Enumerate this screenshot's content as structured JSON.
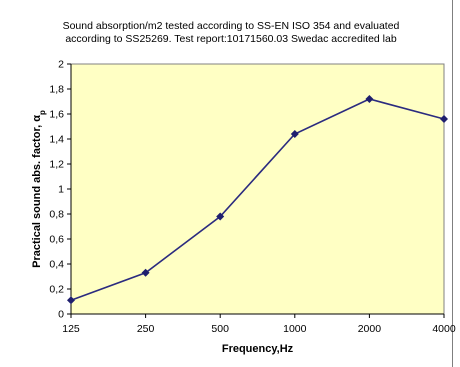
{
  "chart_data": {
    "type": "line",
    "title_line1": "Sound absorption/m2 tested according to SS-EN ISO 354 and evaluated",
    "title_line2": "according to SS25269. Test report:10171560.03 Swedac accredited lab",
    "xlabel": "Frequency,Hz",
    "ylabel": "Practical sound abs. factor, αp",
    "ylabel_main": "Practical sound abs. factor, α",
    "ylabel_sub": "p",
    "x_scale": "categorical",
    "categories": [
      "125",
      "250",
      "500",
      "1000",
      "2000",
      "4000"
    ],
    "y_tick_labels": [
      "0",
      "0,2",
      "0,4",
      "0,6",
      "0,8",
      "1",
      "1,2",
      "1,4",
      "1,6",
      "1,8",
      "2"
    ],
    "ylim": [
      0,
      2
    ],
    "grid": false,
    "legend": "none",
    "series": [
      {
        "values": [
          0.11,
          0.33,
          0.78,
          1.44,
          1.72,
          1.56
        ]
      }
    ],
    "colors": {
      "plot_background": "#ffffc4",
      "line": "#2b2b7f",
      "marker": "#1f1f6e",
      "axis": "#000000"
    }
  }
}
